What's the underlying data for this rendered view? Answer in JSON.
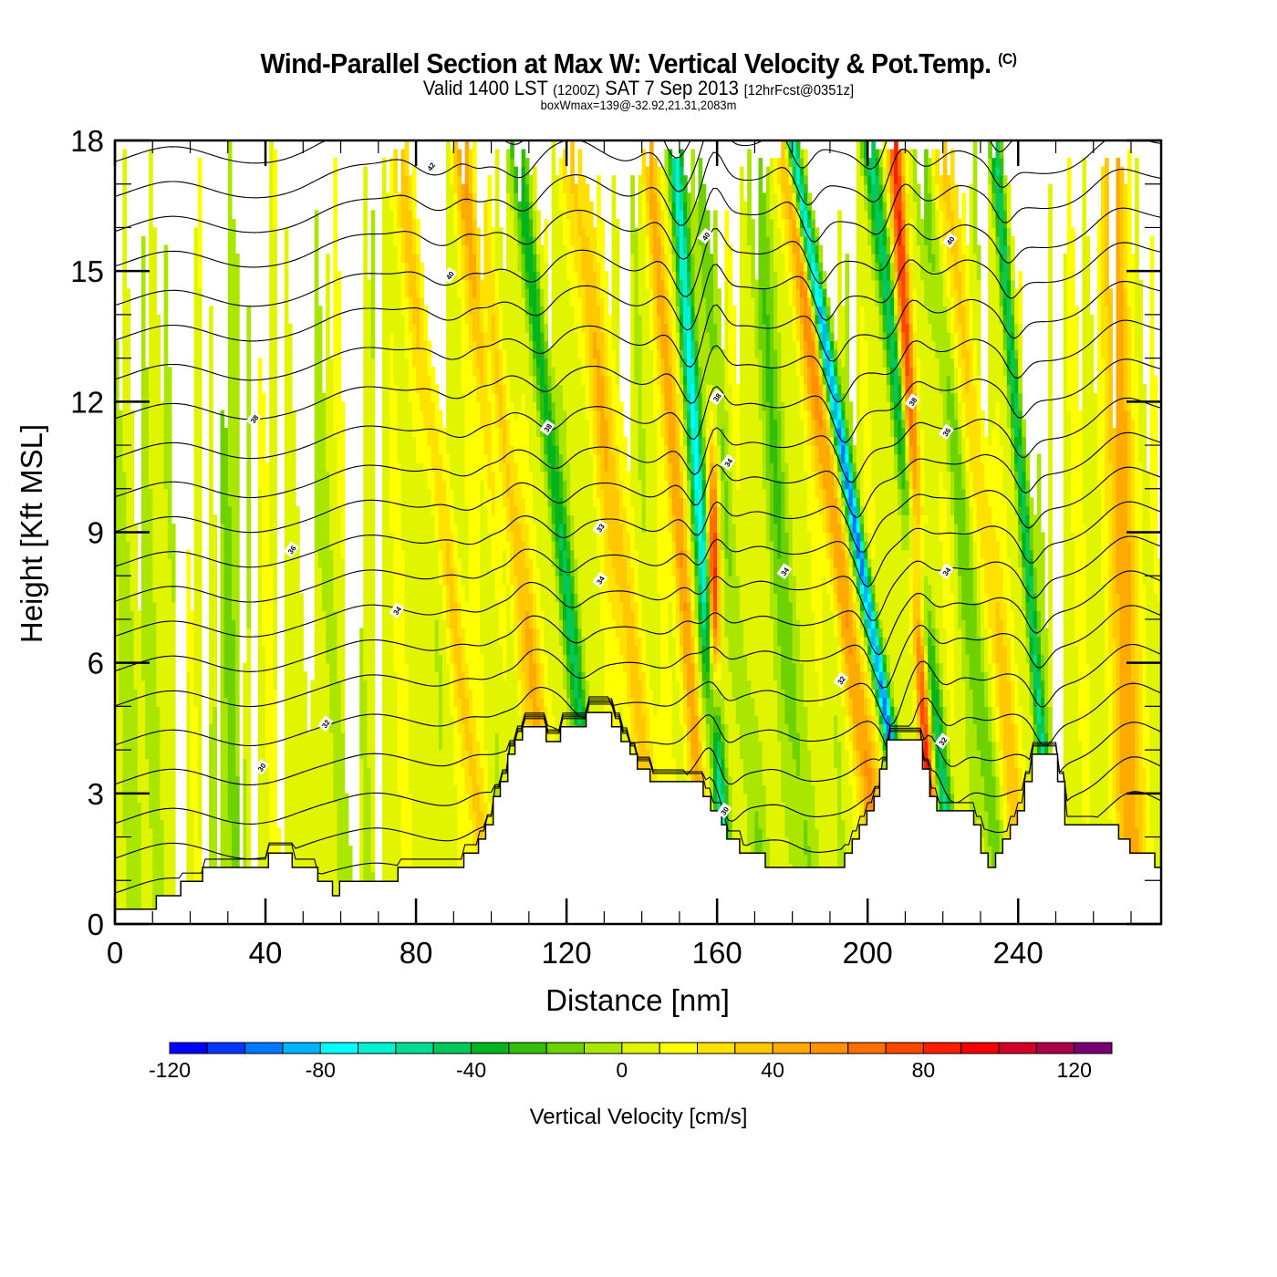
{
  "header": {
    "title": "Wind-Parallel Section at Max W: Vertical Velocity & Pot.Temp.",
    "copyright": "(C)",
    "valid_prefix": "Valid 1400 LST",
    "valid_z": "(1200Z)",
    "valid_date": "SAT 7 Sep 2013",
    "forecast": "[12hrFcst@0351z]",
    "box_info": "boxWmax=139@-32.92,21.31,2083m"
  },
  "chart_data": {
    "type": "heatmap",
    "title": "Wind-Parallel Section at Max W: Vertical Velocity & Pot.Temp.",
    "xlabel": "Distance [nm]",
    "ylabel": "Height [Kft MSL]",
    "xlim": [
      0,
      278
    ],
    "ylim": [
      0,
      18
    ],
    "x_ticks": [
      0,
      40,
      80,
      120,
      160,
      200,
      240
    ],
    "x_tick_labels": [
      "0",
      "40",
      "80",
      "120",
      "160",
      "200",
      "240"
    ],
    "x_minor_step": 10,
    "y_ticks": [
      0,
      3,
      6,
      9,
      12,
      15,
      18
    ],
    "y_tick_labels": [
      "0",
      "3",
      "6",
      "9",
      "12",
      "15",
      "18"
    ],
    "y_minor_step": 1,
    "fill_field": "Vertical Velocity",
    "fill_units": "cm/s",
    "contour_field": "Potential Temperature",
    "colorbar": {
      "label": "Vertical Velocity [cm/s]",
      "levels": [
        -120,
        -110,
        -100,
        -90,
        -80,
        -70,
        -60,
        -50,
        -40,
        -30,
        -20,
        -10,
        0,
        10,
        20,
        30,
        40,
        50,
        60,
        70,
        80,
        90,
        100,
        110,
        120,
        130
      ],
      "colors": [
        "#0000ff",
        "#0037ff",
        "#0078ff",
        "#00b4ff",
        "#00ffff",
        "#00f0d2",
        "#00dc91",
        "#00c85a",
        "#00b41e",
        "#32be0a",
        "#6ed200",
        "#aae600",
        "#e1f500",
        "#ffff00",
        "#ffe100",
        "#ffc800",
        "#ffaa00",
        "#ff9100",
        "#ff6e00",
        "#ff4600",
        "#ff1e00",
        "#f50000",
        "#d20028",
        "#aa0046",
        "#780073"
      ],
      "tick_values": [
        -120,
        -80,
        -40,
        0,
        40,
        80,
        120
      ],
      "tick_labels": [
        "-120",
        "-80",
        "-40",
        "0",
        "40",
        "80",
        "120"
      ]
    },
    "features": [
      {
        "name": "updraft",
        "x0": 113,
        "slope": -1.2,
        "w": 25,
        "width": 2.5
      },
      {
        "name": "downdraft",
        "x0": 111,
        "slope": -0.9,
        "w": -25,
        "width": 1.6
      },
      {
        "name": "downdraft",
        "x0": 130,
        "slope": -1.3,
        "w": -45,
        "width": 2.2
      },
      {
        "name": "updraft",
        "x0": 119,
        "slope": -1.4,
        "w": 30,
        "width": 3.0
      },
      {
        "name": "updraft",
        "x0": 146,
        "slope": -1.4,
        "w": 30,
        "width": 3.5
      },
      {
        "name": "updraft",
        "x0": 159,
        "slope": 0.0,
        "w": 95,
        "width": 1.6
      },
      {
        "name": "downdraft",
        "x0": 163,
        "slope": -0.8,
        "w": -75,
        "width": 2.0
      },
      {
        "name": "updraft",
        "x0": 158,
        "slope": -0.9,
        "w": 40,
        "width": 2.2
      },
      {
        "name": "downdraft",
        "x0": 214,
        "slope": -1.9,
        "w": -100,
        "width": 1.8
      },
      {
        "name": "updraft",
        "x0": 218,
        "slope": -0.6,
        "w": 80,
        "width": 2.0
      },
      {
        "name": "updraft",
        "x0": 205,
        "slope": -1.5,
        "w": 45,
        "width": 3.0
      },
      {
        "name": "downdraft",
        "x0": 224,
        "slope": -1.3,
        "w": -60,
        "width": 2.2
      },
      {
        "name": "downdraft",
        "x0": 250,
        "slope": -0.9,
        "w": -55,
        "width": 1.5
      },
      {
        "name": "updraft",
        "x0": 270,
        "slope": -0.3,
        "w": 45,
        "width": 3.5
      },
      {
        "name": "updraft",
        "x0": 243,
        "slope": -1.3,
        "w": 25,
        "width": 3.0
      },
      {
        "name": "updraft",
        "x0": 100,
        "slope": -1.4,
        "w": 25,
        "width": 2.5
      },
      {
        "name": "downdraft",
        "x0": 30,
        "slope": 0.0,
        "w": -12,
        "width": 6.0
      },
      {
        "name": "downdraft",
        "x0": 5,
        "slope": 0.0,
        "w": -12,
        "width": 5.0
      },
      {
        "name": "downdraft",
        "x0": 62,
        "slope": -0.8,
        "w": -10,
        "width": 4.0
      },
      {
        "name": "downdraft",
        "x0": 185,
        "slope": -0.9,
        "w": -22,
        "width": 3.0
      },
      {
        "name": "downdraft",
        "x0": 172,
        "slope": -1.0,
        "w": -18,
        "width": 2.5
      },
      {
        "name": "downdraft",
        "x0": 236,
        "slope": -1.2,
        "w": -22,
        "width": 2.5
      }
    ],
    "terrain": {
      "x": [
        0,
        11,
        11,
        17.5,
        17.5,
        23.3,
        23.3,
        40.8,
        40.8,
        47.1,
        47.1,
        53.9,
        53.9,
        57.8,
        57.8,
        59.7,
        59.7,
        75.2,
        75.2,
        92.7,
        92.7,
        96.6,
        96.6,
        98.5,
        98.5,
        100.5,
        100.5,
        102.4,
        102.4,
        104.4,
        104.4,
        106.3,
        106.3,
        108.3,
        108.3,
        114.6,
        114.6,
        118.4,
        118.4,
        125.2,
        125.2,
        132,
        132,
        134.5,
        134.5,
        136.9,
        136.9,
        138.8,
        138.8,
        142.2,
        142.2,
        156.3,
        156.3,
        158.3,
        158.3,
        161.2,
        161.2,
        162.6,
        162.6,
        166,
        166,
        172.8,
        172.8,
        193.9,
        193.9,
        195.9,
        195.9,
        197.8,
        197.8,
        199.8,
        199.8,
        201.7,
        201.7,
        203.2,
        203.2,
        205.1,
        205.1,
        214.6,
        214.6,
        216.5,
        216.5,
        218.4,
        218.4,
        228.2,
        228.2,
        230.1,
        230.1,
        232.0,
        232.0,
        234.0,
        234.0,
        235.9,
        235.9,
        237.9,
        237.9,
        239.8,
        239.8,
        241.7,
        241.7,
        243.7,
        243.7,
        250.5,
        250.5,
        252.4,
        252.4,
        266.7,
        266.7,
        269.7,
        269.7,
        276.3,
        276.3,
        278
      ],
      "z": [
        0.34,
        0.34,
        0.65,
        0.65,
        0.98,
        0.98,
        1.3,
        1.3,
        1.63,
        1.63,
        1.3,
        1.3,
        0.98,
        0.98,
        0.65,
        0.65,
        0.98,
        0.98,
        1.3,
        1.3,
        1.63,
        1.63,
        1.95,
        1.95,
        2.28,
        2.28,
        2.93,
        2.93,
        3.27,
        3.27,
        3.9,
        3.9,
        4.23,
        4.23,
        4.53,
        4.53,
        4.19,
        4.19,
        4.53,
        4.53,
        4.86,
        4.86,
        4.53,
        4.53,
        4.19,
        4.19,
        3.9,
        3.9,
        3.56,
        3.56,
        3.27,
        3.27,
        2.93,
        2.93,
        2.6,
        2.6,
        2.28,
        2.28,
        1.95,
        1.95,
        1.63,
        1.63,
        1.3,
        1.3,
        1.63,
        1.63,
        1.95,
        1.95,
        2.28,
        2.28,
        2.6,
        2.6,
        2.93,
        2.93,
        3.56,
        3.56,
        4.23,
        4.23,
        3.56,
        3.56,
        2.93,
        2.93,
        2.6,
        2.6,
        2.28,
        2.28,
        1.63,
        1.63,
        1.3,
        1.3,
        1.63,
        1.63,
        1.95,
        1.95,
        2.28,
        2.28,
        2.6,
        2.6,
        3.27,
        3.27,
        3.9,
        3.9,
        3.27,
        3.27,
        2.28,
        2.28,
        1.95,
        1.95,
        1.63,
        1.63,
        1.3,
        1.3
      ]
    },
    "theta_contours": {
      "levels_kft": [
        0.8,
        1.6,
        2.4,
        3.3,
        4.2,
        5.1,
        5.9,
        6.7,
        7.5,
        8.3,
        9.1,
        9.9,
        10.8,
        11.7,
        12.6,
        13.5,
        14.3,
        15.2,
        16.0,
        16.8,
        17.6
      ],
      "labels": [
        {
          "text": "30",
          "x": 39,
          "z": 3.6
        },
        {
          "text": "32",
          "x": 56,
          "z": 4.6
        },
        {
          "text": "34",
          "x": 75,
          "z": 7.2
        },
        {
          "text": "36",
          "x": 47,
          "z": 8.6
        },
        {
          "text": "38",
          "x": 37,
          "z": 11.6
        },
        {
          "text": "40",
          "x": 89,
          "z": 14.9
        },
        {
          "text": "42",
          "x": 84,
          "z": 17.4
        },
        {
          "text": "38",
          "x": 115,
          "z": 11.4
        },
        {
          "text": "33",
          "x": 129,
          "z": 9.1
        },
        {
          "text": "34",
          "x": 129,
          "z": 7.9
        },
        {
          "text": "40",
          "x": 157,
          "z": 15.8
        },
        {
          "text": "38",
          "x": 160,
          "z": 12.1
        },
        {
          "text": "34",
          "x": 163,
          "z": 10.6
        },
        {
          "text": "34",
          "x": 178,
          "z": 8.1
        },
        {
          "text": "32",
          "x": 193,
          "z": 5.6
        },
        {
          "text": "30",
          "x": 162,
          "z": 2.6
        },
        {
          "text": "38",
          "x": 212,
          "z": 12.0
        },
        {
          "text": "40",
          "x": 222,
          "z": 15.7
        },
        {
          "text": "36",
          "x": 221,
          "z": 11.3
        },
        {
          "text": "34",
          "x": 221,
          "z": 8.1
        },
        {
          "text": "32",
          "x": 220,
          "z": 4.2
        }
      ]
    }
  }
}
